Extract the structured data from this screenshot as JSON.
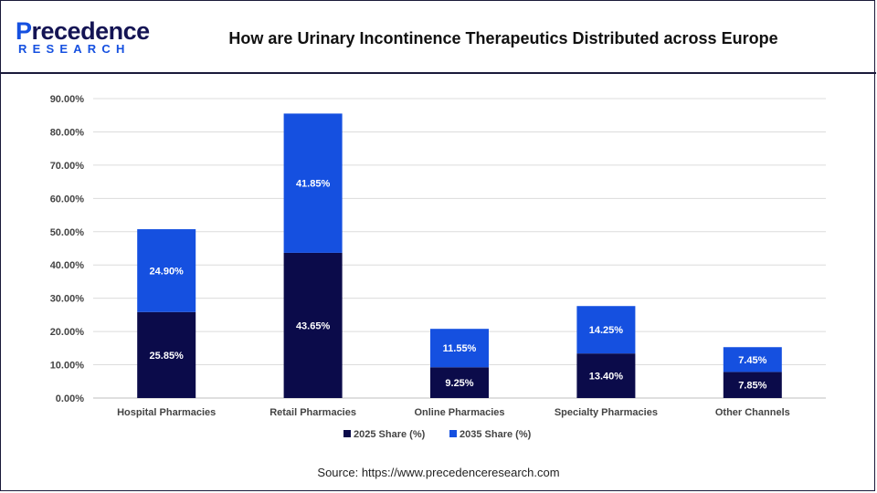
{
  "header": {
    "brand": "recedence",
    "brand_initial": "P",
    "brand_sub": "RESEARCH",
    "title": "How are Urinary Incontinence Therapeutics Distributed across Europe"
  },
  "source": "Source: https://www.precedenceresearch.com",
  "chart_data": {
    "type": "bar",
    "stacked": true,
    "title": "How are Urinary Incontinence Therapeutics Distributed across Europe",
    "categories": [
      "Hospital Pharmacies",
      "Retail Pharmacies",
      "Online Pharmacies",
      "Specialty Pharmacies",
      "Other Channels"
    ],
    "series": [
      {
        "name": "2025 Share (%)",
        "color": "#0b0b4a",
        "values": [
          25.85,
          43.65,
          9.25,
          13.4,
          7.85
        ],
        "labels": [
          "25.85%",
          "43.65%",
          "9.25%",
          "13.40%",
          "7.85%"
        ]
      },
      {
        "name": "2035 Share (%)",
        "color": "#1550e0",
        "values": [
          24.9,
          41.85,
          11.55,
          14.25,
          7.45
        ],
        "labels": [
          "24.90%",
          "41.85%",
          "11.55%",
          "14.25%",
          "7.45%"
        ]
      }
    ],
    "y_ticks": [
      "0.00%",
      "10.00%",
      "20.00%",
      "30.00%",
      "40.00%",
      "50.00%",
      "60.00%",
      "70.00%",
      "80.00%",
      "90.00%"
    ],
    "ylim": [
      0,
      90
    ],
    "grid": true,
    "legend_position": "bottom"
  }
}
